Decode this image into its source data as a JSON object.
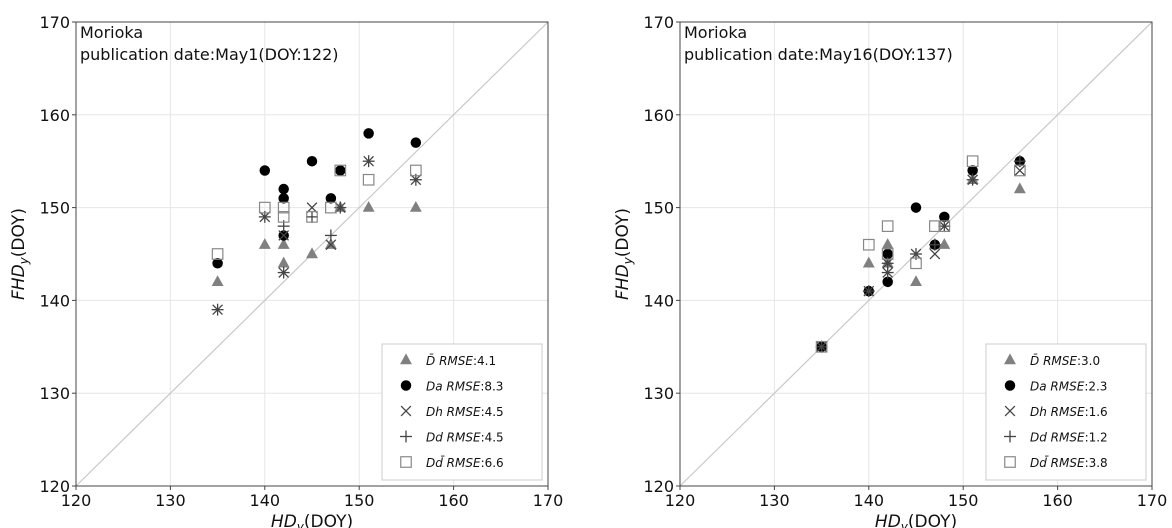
{
  "chart_data": [
    {
      "type": "scatter",
      "annotation_line1": "Morioka",
      "annotation_line2": "publication date:May1(DOY:122)",
      "xlabel_main": "HD",
      "xlabel_sub": "y",
      "xlabel_unit": "(DOY)",
      "ylabel_main": "FHD",
      "ylabel_sub": "y",
      "ylabel_unit": "(DOY)",
      "xlim": [
        120,
        170
      ],
      "ylim": [
        120,
        170
      ],
      "xticks": [
        120,
        130,
        140,
        150,
        160,
        170
      ],
      "yticks": [
        120,
        130,
        140,
        150,
        160,
        170
      ],
      "grid": true,
      "diagonal_reference_line": true,
      "legend_position": "bottom-right",
      "series": [
        {
          "name": "D̄",
          "marker": "triangle",
          "color": "#808080",
          "rmse_label": "RMSE",
          "rmse_value": ":4.1",
          "points": [
            [
              135,
              142
            ],
            [
              140,
              146
            ],
            [
              142,
              146
            ],
            [
              142,
              144
            ],
            [
              145,
              145
            ],
            [
              147,
              146
            ],
            [
              148,
              150
            ],
            [
              151,
              150
            ],
            [
              156,
              150
            ]
          ]
        },
        {
          "name": "Da",
          "marker": "circle",
          "color": "#000000",
          "rmse_label": "RMSE",
          "rmse_value": ":8.3",
          "points": [
            [
              135,
              144
            ],
            [
              140,
              154
            ],
            [
              142,
              152
            ],
            [
              142,
              151
            ],
            [
              142,
              147
            ],
            [
              145,
              155
            ],
            [
              147,
              151
            ],
            [
              148,
              154
            ],
            [
              151,
              158
            ],
            [
              156,
              157
            ]
          ]
        },
        {
          "name": "Dh",
          "marker": "x",
          "color": "#444444",
          "rmse_label": "RMSE",
          "rmse_value": ":4.5",
          "points": [
            [
              135,
              139
            ],
            [
              140,
              149
            ],
            [
              142,
              143
            ],
            [
              142,
              147
            ],
            [
              145,
              150
            ],
            [
              147,
              146
            ],
            [
              148,
              150
            ],
            [
              151,
              155
            ],
            [
              156,
              153
            ]
          ]
        },
        {
          "name": "Dd",
          "marker": "plus",
          "color": "#444444",
          "rmse_label": "RMSE",
          "rmse_value": ":4.5",
          "points": [
            [
              135,
              139
            ],
            [
              140,
              149
            ],
            [
              142,
              143
            ],
            [
              142,
              148
            ],
            [
              145,
              149
            ],
            [
              147,
              147
            ],
            [
              148,
              150
            ],
            [
              151,
              155
            ],
            [
              156,
              153
            ]
          ]
        },
        {
          "name": "Dd̄",
          "marker": "square",
          "color": "#888888",
          "rmse_label": "RMSE",
          "rmse_value": ":6.6",
          "points": [
            [
              135,
              145
            ],
            [
              140,
              150
            ],
            [
              142,
              150
            ],
            [
              142,
              149
            ],
            [
              145,
              149
            ],
            [
              147,
              150
            ],
            [
              148,
              154
            ],
            [
              151,
              153
            ],
            [
              156,
              154
            ]
          ]
        }
      ]
    },
    {
      "type": "scatter",
      "annotation_line1": "Morioka",
      "annotation_line2": "publication date:May16(DOY:137)",
      "xlabel_main": "HD",
      "xlabel_sub": "y",
      "xlabel_unit": "(DOY)",
      "ylabel_main": "FHD",
      "ylabel_sub": "y",
      "ylabel_unit": "(DOY)",
      "xlim": [
        120,
        170
      ],
      "ylim": [
        120,
        170
      ],
      "xticks": [
        120,
        130,
        140,
        150,
        160,
        170
      ],
      "yticks": [
        120,
        130,
        140,
        150,
        160,
        170
      ],
      "grid": true,
      "diagonal_reference_line": true,
      "legend_position": "bottom-right",
      "series": [
        {
          "name": "D̄",
          "marker": "triangle",
          "color": "#808080",
          "rmse_label": "RMSE",
          "rmse_value": ":3.0",
          "points": [
            [
              135,
              135
            ],
            [
              140,
              144
            ],
            [
              142,
              146
            ],
            [
              142,
              144
            ],
            [
              145,
              142
            ],
            [
              147,
              146
            ],
            [
              148,
              146
            ],
            [
              151,
              153
            ],
            [
              156,
              152
            ]
          ]
        },
        {
          "name": "Da",
          "marker": "circle",
          "color": "#000000",
          "rmse_label": "RMSE",
          "rmse_value": ":2.3",
          "points": [
            [
              135,
              135
            ],
            [
              140,
              141
            ],
            [
              142,
              145
            ],
            [
              142,
              142
            ],
            [
              145,
              150
            ],
            [
              147,
              146
            ],
            [
              148,
              149
            ],
            [
              151,
              154
            ],
            [
              156,
              155
            ]
          ]
        },
        {
          "name": "Dh",
          "marker": "x",
          "color": "#444444",
          "rmse_label": "RMSE",
          "rmse_value": ":1.6",
          "points": [
            [
              135,
              135
            ],
            [
              140,
              141
            ],
            [
              142,
              143
            ],
            [
              142,
              144
            ],
            [
              145,
              145
            ],
            [
              147,
              145
            ],
            [
              148,
              148
            ],
            [
              151,
              153
            ],
            [
              156,
              154
            ]
          ]
        },
        {
          "name": "Dd",
          "marker": "plus",
          "color": "#444444",
          "rmse_label": "RMSE",
          "rmse_value": ":1.2",
          "points": [
            [
              135,
              135
            ],
            [
              140,
              141
            ],
            [
              142,
              143
            ],
            [
              142,
              144
            ],
            [
              145,
              145
            ],
            [
              147,
              146
            ],
            [
              148,
              148
            ],
            [
              151,
              153
            ],
            [
              156,
              155
            ]
          ]
        },
        {
          "name": "Dd̄",
          "marker": "square",
          "color": "#888888",
          "rmse_label": "RMSE",
          "rmse_value": ":3.8",
          "points": [
            [
              135,
              135
            ],
            [
              140,
              146
            ],
            [
              142,
              148
            ],
            [
              142,
              145
            ],
            [
              145,
              144
            ],
            [
              147,
              148
            ],
            [
              148,
              148
            ],
            [
              151,
              155
            ],
            [
              156,
              154
            ]
          ]
        }
      ]
    }
  ]
}
